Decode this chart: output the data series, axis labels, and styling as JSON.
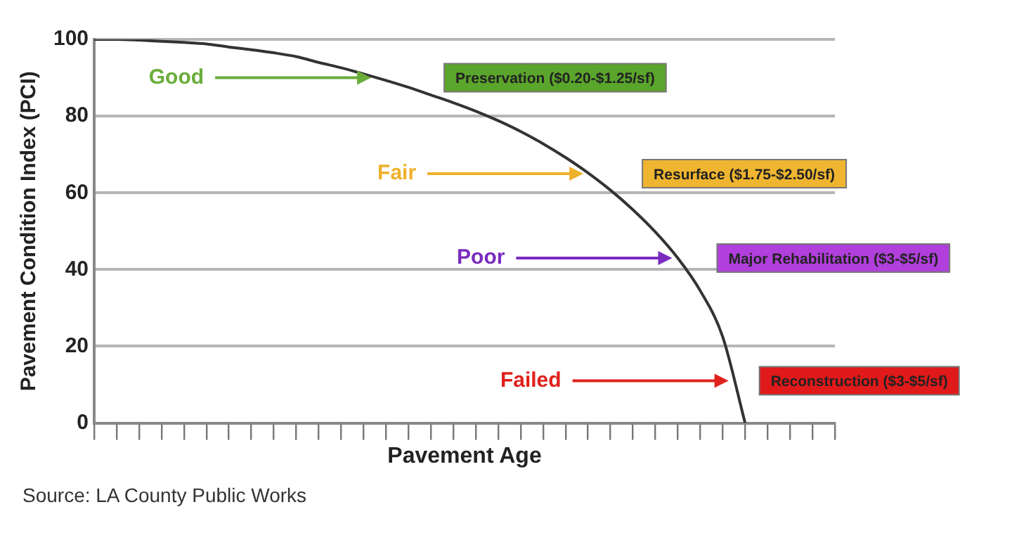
{
  "chart_data": {
    "type": "line",
    "xlabel": "Pavement Age",
    "ylabel": "Pavement Condition Index (PCI)",
    "categories": [
      null,
      null,
      null,
      null,
      null,
      null,
      null,
      null,
      null,
      null,
      null,
      null,
      null,
      null,
      null,
      null,
      null,
      null,
      null,
      null,
      null,
      null,
      null,
      null,
      null,
      null,
      null,
      null,
      null,
      null,
      null,
      null,
      null,
      null
    ],
    "series": [
      {
        "color": "#333333",
        "values": [
          100,
          100,
          99.8,
          99.5,
          99.2,
          98.8,
          98,
          97.3,
          96.5,
          95.5,
          94,
          92.6,
          91,
          89.3,
          87.5,
          85.5,
          83.5,
          81.3,
          78.8,
          76,
          72.8,
          69.2,
          65.2,
          60.7,
          55.6,
          49.8,
          43,
          34.5,
          22.5,
          0,
          null,
          null,
          null,
          null
        ]
      }
    ],
    "ylim": [
      0,
      100
    ],
    "yticks": [
      0,
      20,
      40,
      60,
      80,
      100
    ],
    "grid": "y",
    "legend": false,
    "tick_labels": "y",
    "marker": "none",
    "line_style": "solid",
    "annotations": [
      "Good",
      "Preservation ($0.20-$1.25/sf)",
      "Fair",
      "Resurface ($1.75-$2.50/sf)",
      "Poor",
      "Major Rehabilitation ($3-$5/sf)",
      "Failed",
      "Reconstruction ($3-$5/sf)",
      "Source: LA County Public Works"
    ]
  }
}
